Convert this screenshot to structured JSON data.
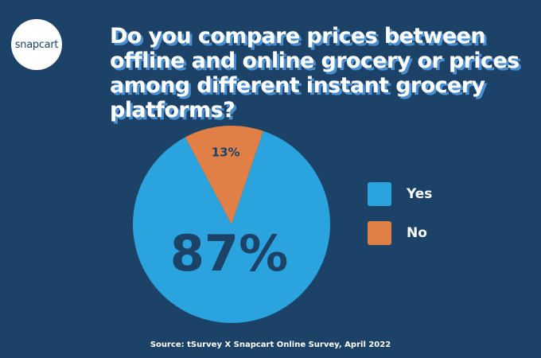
{
  "brand": {
    "logo_text": "snapcart"
  },
  "colors": {
    "background": "#1c4367",
    "yes": "#2aa3df",
    "no": "#e07f46",
    "label_dark": "#1c4367",
    "title_shadow": "#4a8fd1"
  },
  "chart_data": {
    "type": "pie",
    "title": "Do you compare prices between offline and online grocery or prices among different instant grocery platforms?",
    "categories": [
      "Yes",
      "No"
    ],
    "values": [
      87,
      13
    ],
    "data_labels": [
      "87%",
      "13%"
    ],
    "legend": {
      "position": "right",
      "entries": [
        "Yes",
        "No"
      ]
    }
  },
  "footer": {
    "source": "Source: tSurvey X Snapcart Online Survey, April 2022"
  }
}
